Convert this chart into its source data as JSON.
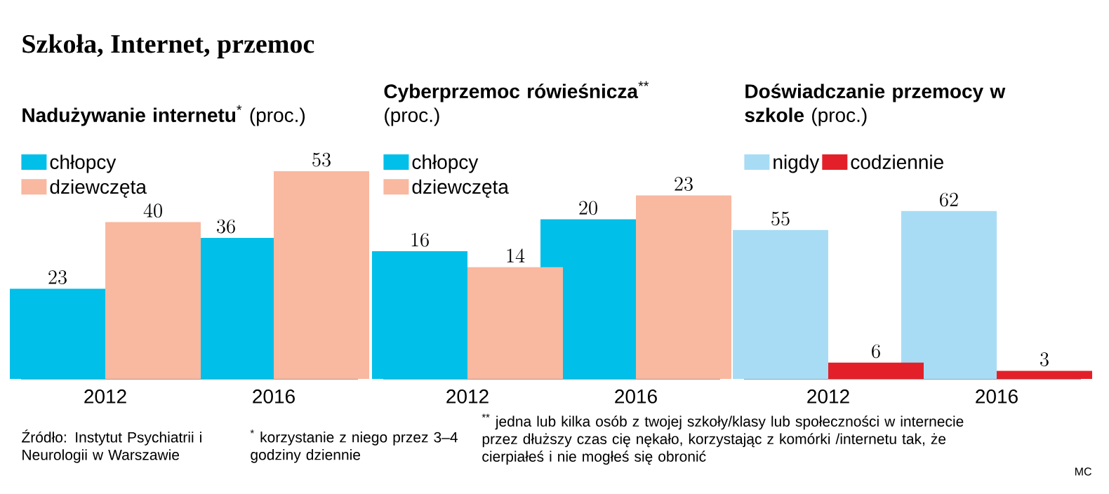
{
  "chart_data": [
    {
      "type": "bar",
      "title": "**Nadużywanie internetu**$^{*}$ (proc.)",
      "categories": [
        "2012",
        "2016"
      ],
      "ylim": [
        0,
        58
      ],
      "tick_labels": "x",
      "data_labels": true,
      "legend": "top left",
      "series": [
        {
          "name": "chłopcy",
          "color": "#00bfe8",
          "values": [
            23,
            36
          ]
        },
        {
          "name": "dziewczęta",
          "color": "#f9b8a0",
          "values": [
            40,
            53
          ]
        }
      ],
      "annotations": [
        "Szkoła, Internet, przemoc",
        "Źródło: Instytut Psychiatrii i Neurologii w Warszawie",
        "$^{*}$ korzystanie z niego przez 3–4 godziny dziennie"
      ]
    },
    {
      "type": "bar",
      "title": "**Cyberprzemoc rówieśnicza**$^{**}$ (proc.)",
      "categories": [
        "2012",
        "2016"
      ],
      "ylim": [
        0,
        28.5
      ],
      "tick_labels": "x",
      "data_labels": true,
      "legend": "top left",
      "series": [
        {
          "name": "chłopcy",
          "color": "#00bfe8",
          "values": [
            16,
            20
          ]
        },
        {
          "name": "dziewczęta",
          "color": "#f9b8a0",
          "values": [
            14,
            23
          ]
        }
      ],
      "annotations": [
        "$^{**}$ jedna lub kilka osób z twojej szkoły/klasy lub społeczności w internecie przez dłuższy czas cię nękało, korzystając z komórki /internetu tak, że cierpiałeś i nie mogłeś się obronić"
      ]
    },
    {
      "type": "bar",
      "title": "**Doświadczanie przemocy w szkole** (proc.)",
      "categories": [
        "2012",
        "2016"
      ],
      "ylim": [
        0,
        84
      ],
      "tick_labels": "x",
      "data_labels": true,
      "legend": "top left",
      "series": [
        {
          "name": "nigdy",
          "color": "#a8dcf5",
          "values": [
            55,
            62
          ]
        },
        {
          "name": "codziennie",
          "color": "#e3202a",
          "values": [
            6,
            3
          ]
        }
      ],
      "annotations": [
        "MC"
      ]
    }
  ]
}
